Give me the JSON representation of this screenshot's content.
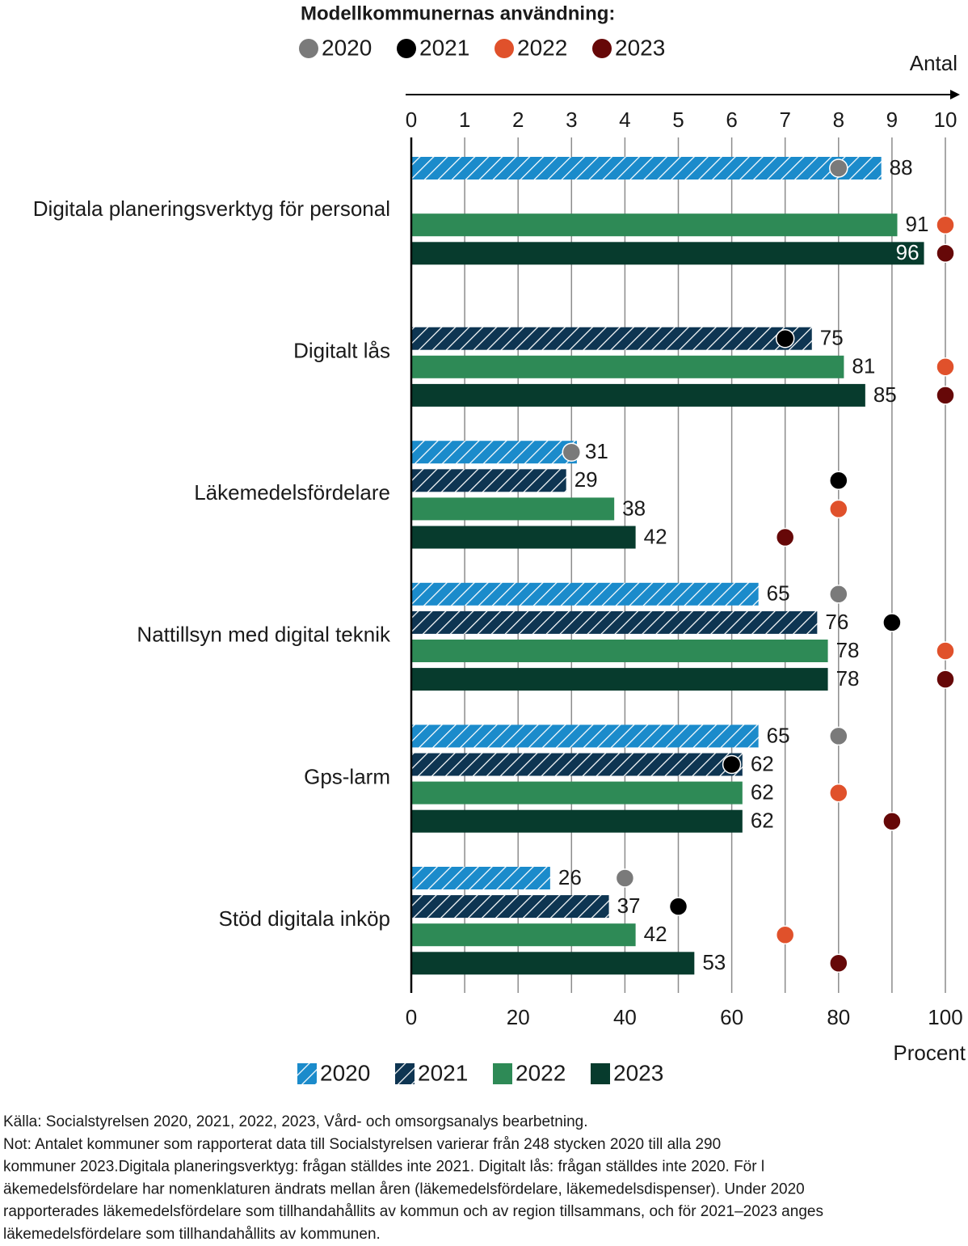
{
  "chart_data": {
    "type": "bar",
    "orientation": "horizontal",
    "dot_legend_title": "Modellkommunernas användning:",
    "x2label": "Antal",
    "xlabel": "Procent",
    "categories": [
      "Digitala planeringsverktyg för personal",
      "Digitalt lås",
      "Läkemedelsfördelare",
      "Nattillsyn med digital teknik",
      "Gps-larm",
      "Stöd digitala inköp"
    ],
    "series": [
      {
        "name": "2020",
        "color": "#1b8bcb",
        "hatch": true,
        "values": [
          88,
          null,
          31,
          65,
          65,
          26
        ]
      },
      {
        "name": "2021",
        "color": "#0e3552",
        "hatch": true,
        "values": [
          null,
          75,
          29,
          76,
          62,
          37
        ]
      },
      {
        "name": "2022",
        "color": "#2e8a56",
        "hatch": false,
        "values": [
          91,
          81,
          38,
          78,
          62,
          42
        ]
      },
      {
        "name": "2023",
        "color": "#073b2d",
        "hatch": false,
        "values": [
          96,
          85,
          42,
          78,
          62,
          53
        ]
      }
    ],
    "dot_series": [
      {
        "name": "2020",
        "color": "#7a7a7a",
        "axis": "x2",
        "values": [
          8,
          null,
          3,
          8,
          8,
          4
        ]
      },
      {
        "name": "2021",
        "color": "#000000",
        "axis": "x2",
        "values": [
          null,
          7,
          8,
          9,
          6,
          5
        ]
      },
      {
        "name": "2022",
        "color": "#e0512b",
        "axis": "x2",
        "values": [
          10,
          10,
          8,
          10,
          8,
          7
        ]
      },
      {
        "name": "2023",
        "color": "#660808",
        "axis": "x2",
        "values": [
          10,
          10,
          7,
          10,
          9,
          8
        ]
      }
    ],
    "xlim": [
      0,
      100
    ],
    "xticks": [
      0,
      20,
      40,
      60,
      80,
      100
    ],
    "x2lim": [
      0,
      10
    ],
    "x2ticks": [
      0,
      1,
      2,
      3,
      4,
      5,
      6,
      7,
      8,
      9,
      10
    ],
    "grid": true,
    "notes": [
      "Källa: Socialstyrelsen 2020, 2021, 2022, 2023, Vård- och omsorgsanalys bearbetning.",
      "Not: Antalet kommuner som rapporterat data till Socialstyrelsen varierar från 248 stycken 2020 till alla 290",
      "kommuner 2023.Digitala planeringsverktyg: frågan ställdes inte 2021. Digitalt lås: frågan ställdes inte 2020. För l",
      "äkemedelsfördelare har nomenklaturen ändrats mellan åren (läkemedelsfördelare, läkemedelsdispenser). Under 2020",
      "rapporterades läkemedelsfördelare som tillhandahållits av kommun och av region tillsammans, och för 2021–2023 anges",
      "läkemedelsfördelare som tillhandahållits av kommunen."
    ]
  }
}
